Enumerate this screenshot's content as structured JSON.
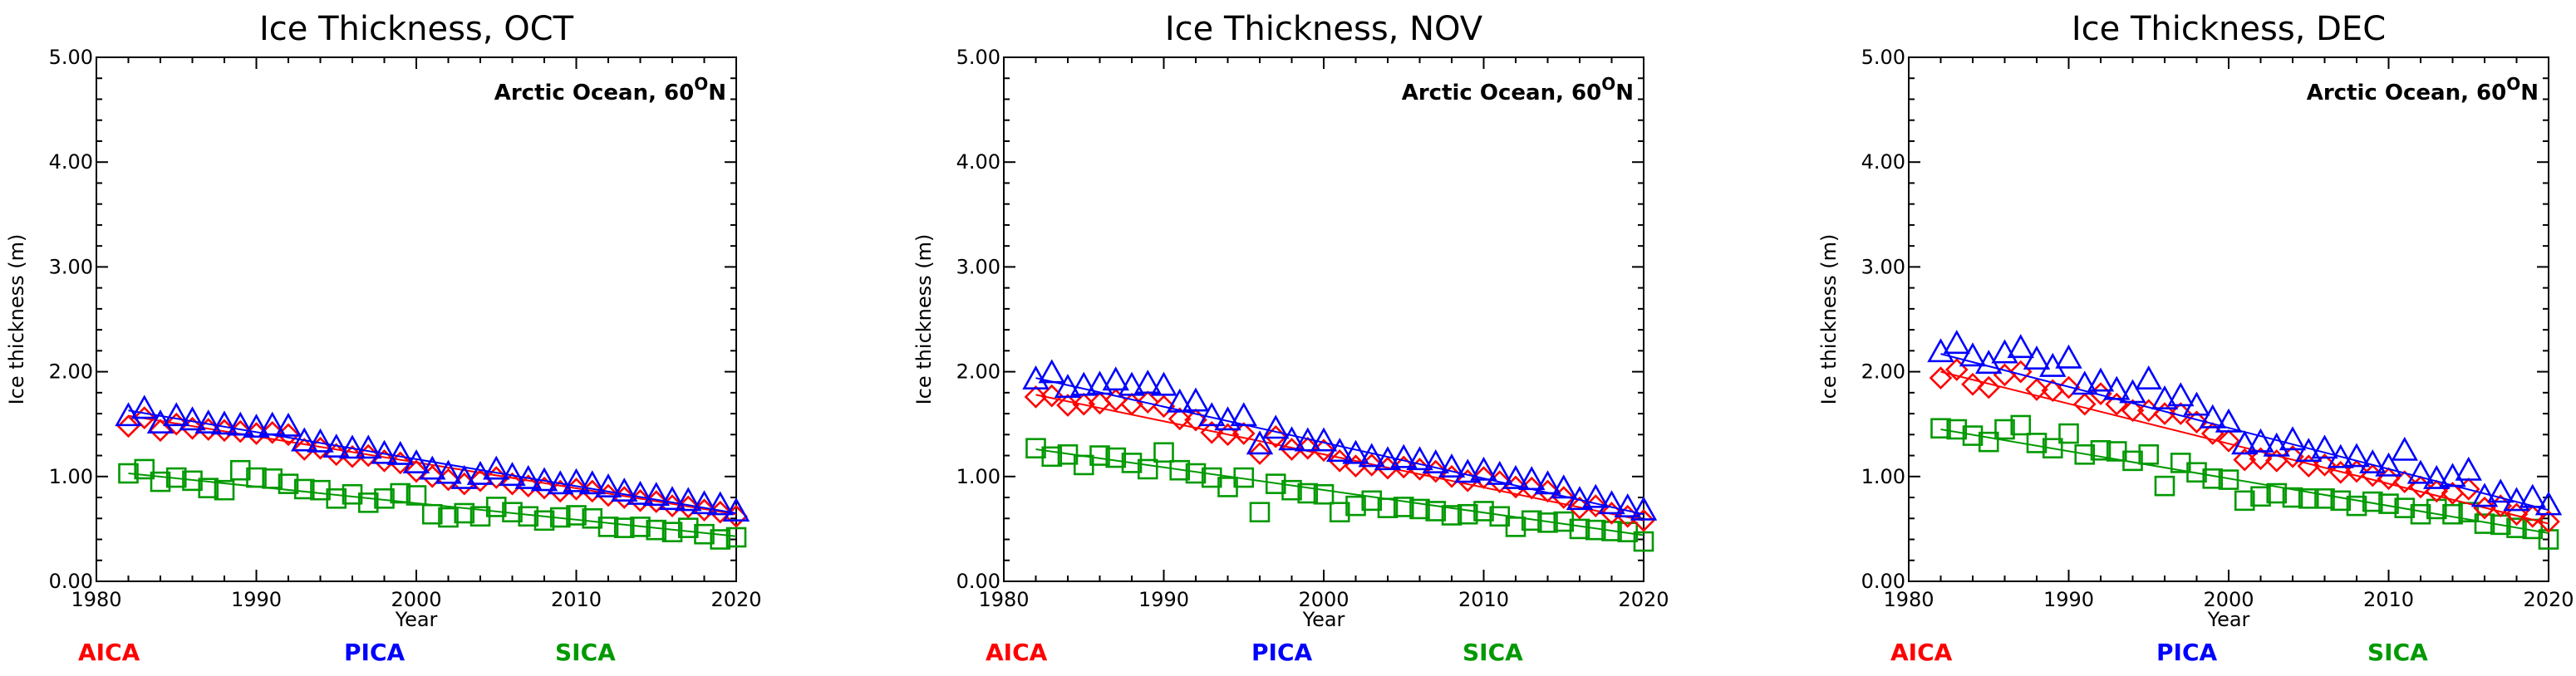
{
  "chart_data": [
    {
      "type": "scatter",
      "title": "Ice Thickness, OCT",
      "xlabel": "Year",
      "ylabel": "Ice thickness (m)",
      "annotation": {
        "text": "Arctic Ocean, 60",
        "sup": "O",
        "suffix": "N"
      },
      "xlim": [
        1980,
        2020
      ],
      "ylim": [
        0,
        5
      ],
      "xticks": [
        1980,
        1990,
        2000,
        2010,
        2020
      ],
      "xtick_labels": [
        "1980",
        "1990",
        "2000",
        "2010",
        "2020"
      ],
      "yticks": [
        0,
        1,
        2,
        3,
        4,
        5
      ],
      "ytick_labels": [
        "0.00",
        "1.00",
        "2.00",
        "3.00",
        "4.00",
        "5.00"
      ],
      "x": [
        1982,
        1983,
        1984,
        1985,
        1986,
        1987,
        1988,
        1989,
        1990,
        1991,
        1992,
        1993,
        1994,
        1995,
        1996,
        1997,
        1998,
        1999,
        2000,
        2001,
        2002,
        2003,
        2004,
        2005,
        2006,
        2007,
        2008,
        2009,
        2010,
        2011,
        2012,
        2013,
        2014,
        2015,
        2016,
        2017,
        2018,
        2019,
        2020
      ],
      "series": [
        {
          "name": "AICA",
          "color": "#ff0000",
          "marker": "diamond",
          "values": [
            1.48,
            1.56,
            1.44,
            1.5,
            1.46,
            1.45,
            1.44,
            1.43,
            1.41,
            1.42,
            1.4,
            1.26,
            1.27,
            1.21,
            1.19,
            1.2,
            1.15,
            1.13,
            1.05,
            1.0,
            0.97,
            0.93,
            0.96,
            0.99,
            0.93,
            0.91,
            0.89,
            0.86,
            0.88,
            0.86,
            0.82,
            0.8,
            0.77,
            0.76,
            0.72,
            0.71,
            0.68,
            0.66,
            0.62
          ],
          "trend": [
            1.58,
            0.64
          ]
        },
        {
          "name": "PICA",
          "color": "#0000ff",
          "marker": "triangle",
          "values": [
            1.57,
            1.64,
            1.5,
            1.57,
            1.53,
            1.5,
            1.49,
            1.48,
            1.46,
            1.48,
            1.47,
            1.33,
            1.32,
            1.27,
            1.26,
            1.26,
            1.21,
            1.2,
            1.12,
            1.06,
            1.02,
            0.97,
            1.01,
            1.06,
            1.0,
            0.97,
            0.95,
            0.92,
            0.94,
            0.92,
            0.89,
            0.85,
            0.82,
            0.81,
            0.77,
            0.76,
            0.73,
            0.72,
            0.66
          ],
          "trend": [
            1.63,
            0.65
          ]
        },
        {
          "name": "SICA",
          "color": "#009900",
          "marker": "square",
          "values": [
            1.03,
            1.07,
            0.95,
            0.99,
            0.96,
            0.89,
            0.87,
            1.06,
            0.99,
            0.98,
            0.93,
            0.88,
            0.87,
            0.79,
            0.83,
            0.75,
            0.79,
            0.84,
            0.82,
            0.64,
            0.61,
            0.65,
            0.62,
            0.71,
            0.66,
            0.62,
            0.58,
            0.61,
            0.63,
            0.6,
            0.52,
            0.51,
            0.52,
            0.49,
            0.47,
            0.51,
            0.45,
            0.4,
            0.42
          ],
          "trend": [
            1.03,
            0.43
          ]
        }
      ],
      "legend": [
        "AICA",
        "PICA",
        "SICA"
      ]
    },
    {
      "type": "scatter",
      "title": "Ice Thickness, NOV",
      "xlabel": "Year",
      "ylabel": "Ice thickness (m)",
      "annotation": {
        "text": "Arctic Ocean, 60",
        "sup": "O",
        "suffix": "N"
      },
      "xlim": [
        1980,
        2020
      ],
      "ylim": [
        0,
        5
      ],
      "xticks": [
        1980,
        1990,
        2000,
        2010,
        2020
      ],
      "xtick_labels": [
        "1980",
        "1990",
        "2000",
        "2010",
        "2020"
      ],
      "yticks": [
        0,
        1,
        2,
        3,
        4,
        5
      ],
      "ytick_labels": [
        "0.00",
        "1.00",
        "2.00",
        "3.00",
        "4.00",
        "5.00"
      ],
      "x": [
        1982,
        1983,
        1984,
        1985,
        1986,
        1987,
        1988,
        1989,
        1990,
        1991,
        1992,
        1993,
        1994,
        1995,
        1996,
        1997,
        1998,
        1999,
        2000,
        2001,
        2002,
        2003,
        2004,
        2005,
        2006,
        2007,
        2008,
        2009,
        2010,
        2011,
        2012,
        2013,
        2014,
        2015,
        2016,
        2017,
        2018,
        2019,
        2020
      ],
      "series": [
        {
          "name": "AICA",
          "color": "#ff0000",
          "marker": "diamond",
          "values": [
            1.76,
            1.77,
            1.68,
            1.69,
            1.7,
            1.73,
            1.69,
            1.71,
            1.67,
            1.55,
            1.54,
            1.42,
            1.4,
            1.41,
            1.22,
            1.38,
            1.26,
            1.27,
            1.25,
            1.15,
            1.1,
            1.11,
            1.08,
            1.09,
            1.07,
            1.05,
            1.0,
            0.96,
            0.99,
            0.95,
            0.9,
            0.89,
            0.86,
            0.8,
            0.7,
            0.72,
            0.65,
            0.62,
            0.58
          ],
          "trend": [
            1.78,
            0.58
          ]
        },
        {
          "name": "PICA",
          "color": "#0000ff",
          "marker": "triangle",
          "values": [
            1.92,
            1.98,
            1.84,
            1.86,
            1.87,
            1.91,
            1.86,
            1.88,
            1.86,
            1.7,
            1.71,
            1.57,
            1.53,
            1.57,
            1.3,
            1.45,
            1.34,
            1.33,
            1.33,
            1.23,
            1.21,
            1.18,
            1.15,
            1.17,
            1.15,
            1.12,
            1.08,
            1.03,
            1.05,
            1.01,
            0.97,
            0.96,
            0.92,
            0.88,
            0.77,
            0.79,
            0.73,
            0.7,
            0.67
          ],
          "trend": [
            1.94,
            0.64
          ]
        },
        {
          "name": "SICA",
          "color": "#009900",
          "marker": "square",
          "values": [
            1.27,
            1.19,
            1.21,
            1.11,
            1.2,
            1.18,
            1.13,
            1.07,
            1.23,
            1.06,
            1.03,
            0.99,
            0.9,
            0.99,
            0.66,
            0.93,
            0.87,
            0.84,
            0.83,
            0.66,
            0.72,
            0.77,
            0.7,
            0.71,
            0.69,
            0.67,
            0.63,
            0.64,
            0.67,
            0.62,
            0.52,
            0.58,
            0.56,
            0.57,
            0.5,
            0.49,
            0.48,
            0.47,
            0.38
          ],
          "trend": [
            1.26,
            0.44
          ]
        }
      ],
      "legend": [
        "AICA",
        "PICA",
        "SICA"
      ]
    },
    {
      "type": "scatter",
      "title": "Ice Thickness, DEC",
      "xlabel": "Year",
      "ylabel": "Ice thickness (m)",
      "annotation": {
        "text": "Arctic Ocean, 60",
        "sup": "O",
        "suffix": "N"
      },
      "xlim": [
        1980,
        2020
      ],
      "ylim": [
        0,
        5
      ],
      "xticks": [
        1980,
        1990,
        2000,
        2010,
        2020
      ],
      "xtick_labels": [
        "1980",
        "1990",
        "2000",
        "2010",
        "2020"
      ],
      "yticks": [
        0,
        1,
        2,
        3,
        4,
        5
      ],
      "ytick_labels": [
        "0.00",
        "1.00",
        "2.00",
        "3.00",
        "4.00",
        "5.00"
      ],
      "x": [
        1982,
        1983,
        1984,
        1985,
        1986,
        1987,
        1988,
        1989,
        1990,
        1991,
        1992,
        1993,
        1994,
        1995,
        1996,
        1997,
        1998,
        1999,
        2000,
        2001,
        2002,
        2003,
        2004,
        2005,
        2006,
        2007,
        2008,
        2009,
        2010,
        2011,
        2012,
        2013,
        2014,
        2015,
        2016,
        2017,
        2018,
        2019,
        2020
      ],
      "series": [
        {
          "name": "AICA",
          "color": "#ff0000",
          "marker": "diamond",
          "values": [
            1.94,
            2.02,
            1.88,
            1.85,
            1.97,
            2.0,
            1.83,
            1.82,
            1.85,
            1.69,
            1.79,
            1.69,
            1.63,
            1.63,
            1.6,
            1.6,
            1.52,
            1.41,
            1.34,
            1.16,
            1.17,
            1.15,
            1.19,
            1.1,
            1.11,
            1.04,
            1.05,
            1.01,
            0.98,
            0.95,
            0.9,
            0.86,
            0.84,
            0.88,
            0.7,
            0.72,
            0.64,
            0.62,
            0.57
          ],
          "trend": [
            2.0,
            0.55
          ]
        },
        {
          "name": "PICA",
          "color": "#0000ff",
          "marker": "triangle",
          "values": [
            2.18,
            2.26,
            2.14,
            2.07,
            2.17,
            2.22,
            2.11,
            2.04,
            2.12,
            1.87,
            1.9,
            1.82,
            1.79,
            1.92,
            1.73,
            1.76,
            1.67,
            1.55,
            1.51,
            1.3,
            1.32,
            1.28,
            1.34,
            1.23,
            1.26,
            1.17,
            1.18,
            1.12,
            1.09,
            1.24,
            1.02,
            0.97,
            0.99,
            1.05,
            0.8,
            0.84,
            0.76,
            0.79,
            0.72
          ],
          "trend": [
            2.17,
            0.68
          ]
        },
        {
          "name": "SICA",
          "color": "#009900",
          "marker": "square",
          "values": [
            1.46,
            1.45,
            1.39,
            1.33,
            1.45,
            1.49,
            1.32,
            1.27,
            1.41,
            1.21,
            1.25,
            1.24,
            1.15,
            1.21,
            0.91,
            1.13,
            1.04,
            0.98,
            0.97,
            0.77,
            0.81,
            0.84,
            0.8,
            0.79,
            0.79,
            0.77,
            0.72,
            0.76,
            0.74,
            0.7,
            0.64,
            0.69,
            0.64,
            0.66,
            0.55,
            0.54,
            0.51,
            0.5,
            0.4
          ],
          "trend": [
            1.45,
            0.46
          ]
        }
      ],
      "legend": [
        "AICA",
        "PICA",
        "SICA"
      ]
    }
  ]
}
